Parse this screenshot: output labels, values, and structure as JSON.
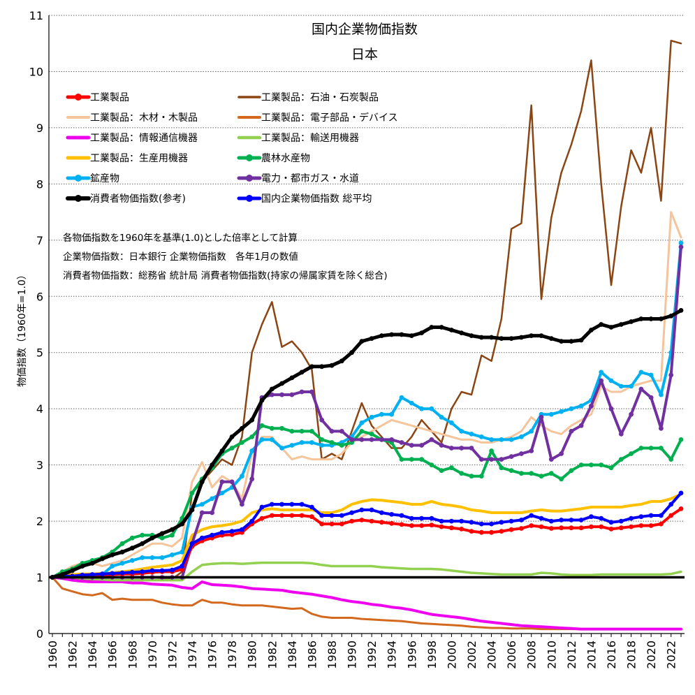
{
  "chart_data": {
    "type": "line",
    "title": "国内企業物価指数",
    "subtitle": "日本",
    "ylabel": "物価指数（1960年=1.0）",
    "xlabel": "",
    "ylim": [
      0,
      11
    ],
    "y_ticks": [
      "0",
      "1",
      "2",
      "3",
      "4",
      "5",
      "6",
      "7",
      "8",
      "9",
      "10",
      "11"
    ],
    "x_ticks": [
      "1960",
      "1962",
      "1964",
      "1966",
      "1968",
      "1970",
      "1972",
      "1974",
      "1976",
      "1978",
      "1980",
      "1982",
      "1984",
      "1986",
      "1988",
      "1990",
      "1992",
      "1994",
      "1996",
      "1998",
      "2000",
      "2002",
      "2004",
      "2006",
      "2008",
      "2010",
      "2012",
      "2014",
      "2016",
      "2018",
      "2020",
      "2022"
    ],
    "grid": "horizontal dotted",
    "legend_position": "top-left",
    "notes": [
      "各物価指数を1960年を基準(1.0)とした倍率として計算",
      "企業物価指数：日本銀行 企業物価指数　各年1月の数値",
      "消費者物価指数：総務省 統計局 消費者物価指数(持家の帰属家賃を除く総合)"
    ],
    "reference_line": 1.0,
    "x": [
      1960,
      1961,
      1962,
      1963,
      1964,
      1965,
      1966,
      1967,
      1968,
      1969,
      1970,
      1971,
      1972,
      1973,
      1974,
      1975,
      1976,
      1977,
      1978,
      1979,
      1980,
      1981,
      1982,
      1983,
      1984,
      1985,
      1986,
      1987,
      1988,
      1989,
      1990,
      1991,
      1992,
      1993,
      1994,
      1995,
      1996,
      1997,
      1998,
      1999,
      2000,
      2001,
      2002,
      2003,
      2004,
      2005,
      2006,
      2007,
      2008,
      2009,
      2010,
      2011,
      2012,
      2013,
      2014,
      2015,
      2016,
      2017,
      2018,
      2019,
      2020,
      2021,
      2022,
      2023
    ],
    "series": [
      {
        "name": "工業製品",
        "color": "#ff0000",
        "width": 4,
        "markers": true,
        "values": [
          1.0,
          1.02,
          1.02,
          1.03,
          1.04,
          1.04,
          1.05,
          1.06,
          1.06,
          1.07,
          1.09,
          1.1,
          1.1,
          1.14,
          1.55,
          1.65,
          1.7,
          1.75,
          1.76,
          1.8,
          1.95,
          2.05,
          2.1,
          2.1,
          2.1,
          2.1,
          2.08,
          1.95,
          1.95,
          1.95,
          2.0,
          2.02,
          2.0,
          1.98,
          1.96,
          1.94,
          1.92,
          1.92,
          1.93,
          1.9,
          1.88,
          1.86,
          1.82,
          1.8,
          1.8,
          1.82,
          1.85,
          1.87,
          1.92,
          1.9,
          1.87,
          1.88,
          1.88,
          1.88,
          1.9,
          1.9,
          1.86,
          1.88,
          1.9,
          1.92,
          1.92,
          1.95,
          2.1,
          2.22
        ]
      },
      {
        "name": "工業製品：石油・石炭製品",
        "color": "#8b4513",
        "width": 2.5,
        "markers": false,
        "values": [
          1.0,
          1.0,
          0.98,
          0.97,
          0.95,
          0.95,
          0.95,
          0.95,
          0.95,
          0.95,
          0.95,
          0.96,
          0.97,
          1.1,
          2.5,
          2.7,
          2.9,
          3.1,
          3.0,
          3.5,
          5.0,
          5.5,
          5.9,
          5.1,
          5.2,
          5.0,
          4.7,
          3.1,
          3.2,
          3.1,
          3.6,
          4.1,
          3.7,
          3.5,
          3.3,
          3.3,
          3.5,
          3.8,
          3.6,
          3.4,
          4.0,
          4.3,
          4.25,
          4.95,
          4.85,
          5.6,
          7.2,
          7.3,
          9.4,
          5.95,
          7.4,
          8.2,
          8.7,
          9.3,
          10.2,
          8.0,
          6.2,
          7.6,
          8.6,
          8.2,
          9.0,
          7.7,
          10.55,
          10.5
        ]
      },
      {
        "name": "工業製品：木材・木製品",
        "color": "#f5c49a",
        "width": 3,
        "markers": false,
        "values": [
          1.0,
          1.1,
          1.2,
          1.25,
          1.25,
          1.2,
          1.25,
          1.3,
          1.4,
          1.5,
          1.6,
          1.6,
          1.55,
          1.7,
          2.7,
          3.05,
          2.6,
          2.8,
          2.7,
          2.4,
          3.2,
          3.5,
          3.5,
          3.3,
          3.1,
          3.15,
          3.1,
          3.1,
          3.1,
          3.2,
          3.4,
          3.5,
          3.6,
          3.7,
          3.8,
          3.75,
          3.7,
          3.65,
          3.6,
          3.55,
          3.5,
          3.45,
          3.45,
          3.4,
          3.4,
          3.45,
          3.5,
          3.6,
          3.85,
          3.7,
          3.6,
          3.55,
          3.7,
          3.8,
          3.9,
          4.4,
          4.3,
          4.3,
          4.4,
          4.45,
          4.5,
          4.5,
          7.5,
          7.05
        ]
      },
      {
        "name": "工業製品：電子部品・デバイス",
        "color": "#d2691e",
        "width": 3,
        "markers": false,
        "values": [
          1.0,
          0.8,
          0.75,
          0.7,
          0.68,
          0.72,
          0.6,
          0.62,
          0.6,
          0.6,
          0.6,
          0.55,
          0.52,
          0.5,
          0.5,
          0.6,
          0.55,
          0.55,
          0.52,
          0.5,
          0.5,
          0.5,
          0.48,
          0.46,
          0.44,
          0.45,
          0.35,
          0.3,
          0.28,
          0.28,
          0.28,
          0.26,
          0.25,
          0.24,
          0.23,
          0.22,
          0.2,
          0.18,
          0.17,
          0.16,
          0.15,
          0.14,
          0.12,
          0.11,
          0.1,
          0.1,
          0.09,
          0.09,
          0.09,
          0.08,
          0.08,
          0.08,
          0.08,
          0.08,
          0.08,
          0.08,
          0.08,
          0.08,
          0.08,
          0.08,
          0.08,
          0.08,
          0.08,
          0.08
        ]
      },
      {
        "name": "工業製品：情報通信機器",
        "color": "#ee00ee",
        "width": 4,
        "markers": false,
        "values": [
          1.0,
          0.98,
          0.95,
          0.93,
          0.92,
          0.92,
          0.92,
          0.92,
          0.9,
          0.9,
          0.88,
          0.87,
          0.86,
          0.82,
          0.8,
          0.92,
          0.87,
          0.86,
          0.85,
          0.83,
          0.8,
          0.79,
          0.78,
          0.77,
          0.74,
          0.72,
          0.7,
          0.67,
          0.64,
          0.6,
          0.57,
          0.55,
          0.52,
          0.5,
          0.47,
          0.45,
          0.42,
          0.38,
          0.34,
          0.32,
          0.3,
          0.28,
          0.25,
          0.22,
          0.2,
          0.18,
          0.16,
          0.14,
          0.13,
          0.12,
          0.11,
          0.1,
          0.09,
          0.08,
          0.08,
          0.08,
          0.08,
          0.08,
          0.08,
          0.08,
          0.08,
          0.08,
          0.08,
          0.08
        ]
      },
      {
        "name": "工業製品：輸送用機器",
        "color": "#92d050",
        "width": 3.5,
        "markers": false,
        "values": [
          1.0,
          1.0,
          1.0,
          0.98,
          0.97,
          0.96,
          0.95,
          0.95,
          0.95,
          0.95,
          0.95,
          0.95,
          0.95,
          0.95,
          1.1,
          1.22,
          1.24,
          1.25,
          1.25,
          1.24,
          1.25,
          1.26,
          1.26,
          1.26,
          1.26,
          1.26,
          1.25,
          1.22,
          1.2,
          1.2,
          1.2,
          1.2,
          1.2,
          1.18,
          1.17,
          1.16,
          1.15,
          1.15,
          1.15,
          1.14,
          1.12,
          1.1,
          1.08,
          1.07,
          1.06,
          1.05,
          1.05,
          1.05,
          1.05,
          1.08,
          1.07,
          1.05,
          1.04,
          1.04,
          1.04,
          1.05,
          1.05,
          1.05,
          1.05,
          1.05,
          1.05,
          1.05,
          1.06,
          1.1
        ]
      },
      {
        "name": "工業製品：生産用機器",
        "color": "#ffc000",
        "width": 4,
        "markers": false,
        "values": [
          1.0,
          1.03,
          1.05,
          1.06,
          1.06,
          1.07,
          1.08,
          1.1,
          1.12,
          1.15,
          1.18,
          1.2,
          1.22,
          1.3,
          1.75,
          1.85,
          1.9,
          1.92,
          1.95,
          2.0,
          2.15,
          2.2,
          2.22,
          2.2,
          2.2,
          2.2,
          2.2,
          2.15,
          2.15,
          2.2,
          2.3,
          2.35,
          2.38,
          2.37,
          2.35,
          2.33,
          2.3,
          2.3,
          2.35,
          2.3,
          2.28,
          2.25,
          2.2,
          2.18,
          2.15,
          2.15,
          2.15,
          2.15,
          2.18,
          2.2,
          2.18,
          2.18,
          2.2,
          2.22,
          2.25,
          2.25,
          2.25,
          2.25,
          2.28,
          2.3,
          2.35,
          2.35,
          2.4,
          2.48
        ]
      },
      {
        "name": "農林水産物",
        "color": "#00b050",
        "width": 4,
        "markers": true,
        "values": [
          1.0,
          1.1,
          1.15,
          1.25,
          1.3,
          1.35,
          1.45,
          1.6,
          1.7,
          1.75,
          1.75,
          1.7,
          1.75,
          2.05,
          2.5,
          2.75,
          2.95,
          3.2,
          3.3,
          3.4,
          3.5,
          3.7,
          3.65,
          3.65,
          3.6,
          3.6,
          3.6,
          3.45,
          3.4,
          3.35,
          3.4,
          3.6,
          3.55,
          3.45,
          3.4,
          3.1,
          3.1,
          3.1,
          3.0,
          2.9,
          2.95,
          2.85,
          2.8,
          2.8,
          3.25,
          2.95,
          2.9,
          2.85,
          2.85,
          2.8,
          2.85,
          2.75,
          2.9,
          3.0,
          3.0,
          3.0,
          2.95,
          3.1,
          3.2,
          3.3,
          3.3,
          3.3,
          3.1,
          3.45
        ]
      },
      {
        "name": "鉱産物",
        "color": "#00b0f0",
        "width": 4,
        "markers": true,
        "values": [
          1.0,
          1.0,
          1.0,
          1.0,
          1.0,
          1.05,
          1.2,
          1.25,
          1.3,
          1.35,
          1.35,
          1.35,
          1.4,
          1.45,
          2.25,
          2.3,
          2.4,
          2.5,
          2.6,
          2.8,
          3.25,
          3.45,
          3.45,
          3.3,
          3.35,
          3.4,
          3.4,
          3.35,
          3.35,
          3.4,
          3.5,
          3.75,
          3.85,
          3.9,
          3.9,
          4.2,
          4.1,
          4.0,
          4.0,
          3.85,
          3.75,
          3.6,
          3.55,
          3.5,
          3.45,
          3.45,
          3.45,
          3.5,
          3.6,
          3.9,
          3.9,
          3.95,
          4.0,
          4.05,
          4.15,
          4.65,
          4.5,
          4.4,
          4.4,
          4.65,
          4.6,
          4.25,
          5.0,
          6.95
        ]
      },
      {
        "name": "電力・都市ガス・水道",
        "color": "#7030a0",
        "width": 4,
        "markers": true,
        "values": [
          1.0,
          1.0,
          1.0,
          1.0,
          1.0,
          1.0,
          1.0,
          1.0,
          1.0,
          1.0,
          1.0,
          1.0,
          1.0,
          1.0,
          1.6,
          2.15,
          2.15,
          2.7,
          2.7,
          2.3,
          2.75,
          4.2,
          4.25,
          4.25,
          4.25,
          4.3,
          4.3,
          3.8,
          3.6,
          3.6,
          3.45,
          3.45,
          3.45,
          3.45,
          3.45,
          3.4,
          3.35,
          3.35,
          3.45,
          3.35,
          3.3,
          3.3,
          3.3,
          3.1,
          3.1,
          3.1,
          3.15,
          3.2,
          3.25,
          3.85,
          3.1,
          3.2,
          3.6,
          3.7,
          4.05,
          4.5,
          4.0,
          3.55,
          3.9,
          4.35,
          4.2,
          3.65,
          4.6,
          6.88
        ]
      },
      {
        "name": "消費者物価指数(参考)",
        "color": "#000000",
        "width": 5,
        "markers": true,
        "values": [
          1.0,
          1.05,
          1.12,
          1.2,
          1.25,
          1.33,
          1.4,
          1.45,
          1.52,
          1.6,
          1.7,
          1.78,
          1.85,
          1.95,
          2.2,
          2.7,
          3.0,
          3.25,
          3.5,
          3.65,
          3.8,
          4.15,
          4.35,
          4.45,
          4.55,
          4.65,
          4.75,
          4.75,
          4.77,
          4.85,
          5.0,
          5.2,
          5.25,
          5.3,
          5.32,
          5.32,
          5.3,
          5.35,
          5.45,
          5.45,
          5.4,
          5.35,
          5.3,
          5.27,
          5.27,
          5.25,
          5.25,
          5.27,
          5.3,
          5.3,
          5.25,
          5.2,
          5.2,
          5.22,
          5.4,
          5.5,
          5.45,
          5.5,
          5.55,
          5.6,
          5.6,
          5.6,
          5.65,
          5.75
        ]
      },
      {
        "name": "国内企業物価指数 総平均",
        "color": "#0000ff",
        "width": 4,
        "markers": true,
        "values": [
          1.0,
          1.02,
          1.02,
          1.04,
          1.05,
          1.06,
          1.07,
          1.08,
          1.09,
          1.1,
          1.12,
          1.12,
          1.13,
          1.2,
          1.6,
          1.7,
          1.75,
          1.8,
          1.82,
          1.85,
          2.0,
          2.25,
          2.3,
          2.3,
          2.3,
          2.3,
          2.25,
          2.1,
          2.1,
          2.1,
          2.15,
          2.2,
          2.2,
          2.15,
          2.12,
          2.1,
          2.05,
          2.05,
          2.05,
          2.0,
          2.0,
          2.0,
          1.98,
          1.95,
          1.95,
          1.98,
          2.0,
          2.02,
          2.1,
          2.05,
          2.0,
          2.02,
          2.02,
          2.02,
          2.08,
          2.05,
          1.98,
          2.0,
          2.05,
          2.08,
          2.1,
          2.1,
          2.3,
          2.5
        ]
      }
    ]
  }
}
